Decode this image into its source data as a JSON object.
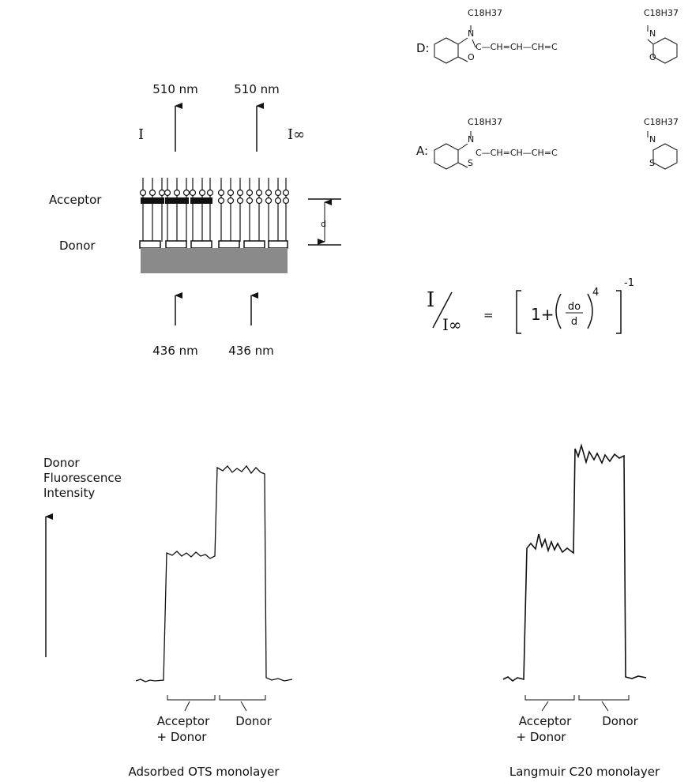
{
  "schematic": {
    "emission_left": "510 nm",
    "emission_right": "510 nm",
    "intensity_left": "I",
    "intensity_right": "I∞",
    "acceptor_label": "Acceptor",
    "donor_label": "Donor",
    "distance_label": "d",
    "excitation_left": "436 nm",
    "excitation_right": "436 nm"
  },
  "molecules": {
    "donor": {
      "label": "D:",
      "substituent_left": "C18H37",
      "substituent_right": "C18H37",
      "heteroatom": "O",
      "chain": "C—CH=CH—CH=C"
    },
    "acceptor": {
      "label": "A:",
      "substituent_left": "C18H37",
      "substituent_right": "C18H37",
      "heteroatom": "S",
      "chain": "C—CH=CH—CH=C"
    },
    "nitrogen": "N"
  },
  "formula": {
    "numerator": "I",
    "denominator": "I∞",
    "equals": "=",
    "one_plus": "1+",
    "ratio_top": "do",
    "ratio_bottom": "d",
    "power": "4",
    "outer_power": "-1"
  },
  "traces": {
    "y_axis_lines": [
      "Donor",
      "Fluorescence",
      "Intensity"
    ],
    "left": {
      "bracket_1": [
        "Acceptor",
        "+ Donor"
      ],
      "bracket_2": "Donor",
      "caption": "Adsorbed OTS monolayer"
    },
    "right": {
      "bracket_1": [
        "Acceptor",
        "+ Donor"
      ],
      "bracket_2": "Donor",
      "caption": "Langmuir C20 monolayer"
    }
  }
}
